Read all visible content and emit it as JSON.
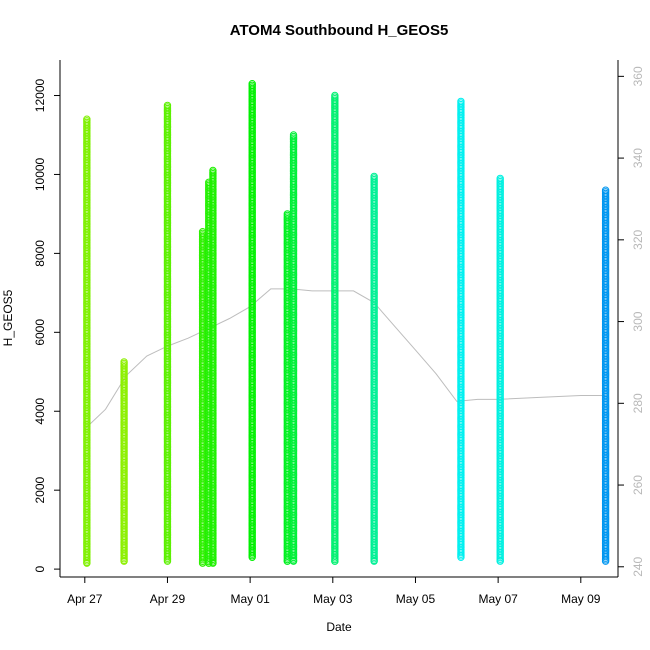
{
  "chart_data": {
    "type": "scatter",
    "title": "ATOM4 Southbound H_GEOS5",
    "xlabel": "Date",
    "ylabel": "H_GEOS5",
    "x_tick_labels": [
      "Apr 27",
      "Apr 29",
      "May 01",
      "May 03",
      "May 05",
      "May 07",
      "May 09"
    ],
    "x_ticks_day": [
      0,
      2,
      4,
      6,
      8,
      10,
      12
    ],
    "xlim_day": [
      -0.6,
      12.9
    ],
    "ylim": [
      -200,
      12900
    ],
    "y_ticks": [
      0,
      2000,
      4000,
      6000,
      8000,
      10000,
      12000
    ],
    "y2_label": "",
    "y2_ticks": [
      240,
      260,
      280,
      300,
      320,
      340,
      360
    ],
    "y2lim": [
      237.5,
      364
    ],
    "plot_box": "open",
    "marker": "open circle",
    "series": [
      {
        "day": 0.05,
        "ymin": 150,
        "ymax": 11400,
        "color": "#7ff000"
      },
      {
        "day": 0.95,
        "ymin": 200,
        "ymax": 5250,
        "color": "#8cf000"
      },
      {
        "day": 2.0,
        "ymin": 200,
        "ymax": 11750,
        "color": "#5cf000"
      },
      {
        "day": 2.85,
        "ymin": 150,
        "ymax": 8550,
        "color": "#2ef000"
      },
      {
        "day": 3.0,
        "ymin": 150,
        "ymax": 9800,
        "color": "#22f000"
      },
      {
        "day": 3.1,
        "ymin": 150,
        "ymax": 10100,
        "color": "#1ef000"
      },
      {
        "day": 4.05,
        "ymin": 300,
        "ymax": 12300,
        "color": "#00f000"
      },
      {
        "day": 4.9,
        "ymin": 200,
        "ymax": 9000,
        "color": "#00f020"
      },
      {
        "day": 5.05,
        "ymin": 200,
        "ymax": 11000,
        "color": "#00f038"
      },
      {
        "day": 6.05,
        "ymin": 200,
        "ymax": 12000,
        "color": "#00f070"
      },
      {
        "day": 7.0,
        "ymin": 200,
        "ymax": 9950,
        "color": "#00f095"
      },
      {
        "day": 9.1,
        "ymin": 300,
        "ymax": 11850,
        "color": "#00f0f0"
      },
      {
        "day": 10.05,
        "ymin": 200,
        "ymax": 9900,
        "color": "#00f0e0"
      },
      {
        "day": 12.6,
        "ymin": 200,
        "ymax": 9600,
        "color": "#0096f0"
      }
    ],
    "secondary_series": {
      "color": "#bdbdbd",
      "points": [
        [
          0.0,
          3550
        ],
        [
          0.5,
          4050
        ],
        [
          1.0,
          4900
        ],
        [
          1.5,
          5400
        ],
        [
          2.0,
          5650
        ],
        [
          2.5,
          5850
        ],
        [
          3.0,
          6100
        ],
        [
          3.5,
          6350
        ],
        [
          4.0,
          6650
        ],
        [
          4.5,
          7100
        ],
        [
          5.0,
          7100
        ],
        [
          5.5,
          7050
        ],
        [
          6.0,
          7050
        ],
        [
          6.5,
          7050
        ],
        [
          7.0,
          6750
        ],
        [
          7.5,
          6150
        ],
        [
          8.0,
          5550
        ],
        [
          8.5,
          4950
        ],
        [
          9.0,
          4250
        ],
        [
          9.5,
          4300
        ],
        [
          10.0,
          4300
        ],
        [
          11.0,
          4350
        ],
        [
          12.0,
          4400
        ],
        [
          12.6,
          4400
        ]
      ]
    }
  }
}
